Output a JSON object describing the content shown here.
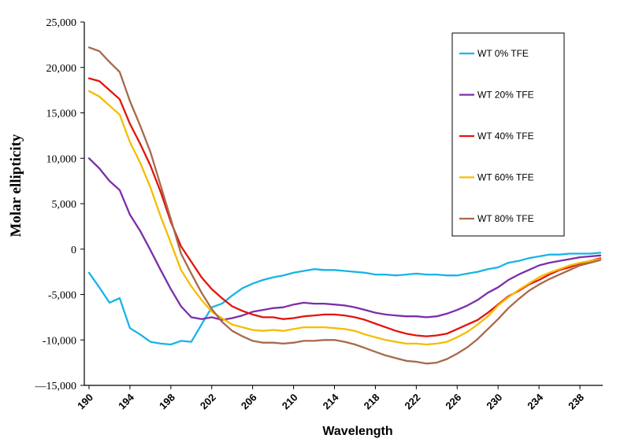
{
  "chart_data": {
    "type": "line",
    "title": "",
    "xlabel": "Wavelength",
    "ylabel": "Molar ellipticity",
    "xlim": [
      190,
      240
    ],
    "ylim": [
      -15000,
      25000
    ],
    "x_ticks": [
      190,
      194,
      198,
      202,
      206,
      210,
      214,
      218,
      222,
      226,
      230,
      234,
      238
    ],
    "y_ticks": [
      -15000,
      -10000,
      -5000,
      0,
      5000,
      10000,
      15000,
      20000,
      25000
    ],
    "y_tick_labels": [
      "—15,000",
      "-10,000",
      "-5,000",
      "0",
      "5,000",
      "10,000",
      "15,000",
      "20,000",
      "25,000"
    ],
    "grid": false,
    "legend_position": "top-right",
    "x": [
      190,
      191,
      192,
      193,
      194,
      195,
      196,
      197,
      198,
      199,
      200,
      201,
      202,
      203,
      204,
      205,
      206,
      207,
      208,
      209,
      210,
      211,
      212,
      213,
      214,
      215,
      216,
      217,
      218,
      219,
      220,
      221,
      222,
      223,
      224,
      225,
      226,
      227,
      228,
      229,
      230,
      231,
      232,
      233,
      234,
      235,
      236,
      237,
      238,
      239,
      240
    ],
    "series": [
      {
        "name": "WT 0% TFE",
        "color": "#17b4e8",
        "values": [
          -2600,
          -4200,
          -5900,
          -5400,
          -8700,
          -9400,
          -10200,
          -10400,
          -10500,
          -10100,
          -10200,
          -8300,
          -6400,
          -6000,
          -5100,
          -4300,
          -3800,
          -3400,
          -3100,
          -2900,
          -2600,
          -2400,
          -2200,
          -2300,
          -2300,
          -2400,
          -2500,
          -2600,
          -2800,
          -2800,
          -2900,
          -2800,
          -2700,
          -2800,
          -2800,
          -2900,
          -2900,
          -2700,
          -2500,
          -2200,
          -2000,
          -1500,
          -1300,
          -1000,
          -800,
          -600,
          -600,
          -500,
          -500,
          -500,
          -400
        ]
      },
      {
        "name": "WT 20% TFE",
        "color": "#7b2fa8",
        "values": [
          10000,
          8900,
          7500,
          6500,
          3800,
          2000,
          -100,
          -2300,
          -4400,
          -6300,
          -7500,
          -7700,
          -7500,
          -7800,
          -7600,
          -7300,
          -6900,
          -6700,
          -6500,
          -6400,
          -6100,
          -5900,
          -6000,
          -6000,
          -6100,
          -6200,
          -6400,
          -6700,
          -7000,
          -7200,
          -7300,
          -7400,
          -7400,
          -7500,
          -7400,
          -7100,
          -6700,
          -6200,
          -5600,
          -4800,
          -4200,
          -3400,
          -2800,
          -2300,
          -1800,
          -1500,
          -1300,
          -1100,
          -900,
          -800,
          -700
        ]
      },
      {
        "name": "WT 40% TFE",
        "color": "#e3140d",
        "values": [
          18800,
          18500,
          17500,
          16500,
          13800,
          11600,
          9200,
          6300,
          3000,
          300,
          -1400,
          -3100,
          -4400,
          -5400,
          -6300,
          -6800,
          -7200,
          -7500,
          -7500,
          -7700,
          -7600,
          -7400,
          -7300,
          -7200,
          -7200,
          -7300,
          -7500,
          -7800,
          -8200,
          -8600,
          -9000,
          -9300,
          -9500,
          -9600,
          -9500,
          -9300,
          -8800,
          -8300,
          -7800,
          -7000,
          -6100,
          -5200,
          -4600,
          -3900,
          -3400,
          -2800,
          -2300,
          -2000,
          -1600,
          -1300,
          -1000
        ]
      },
      {
        "name": "WT 60% TFE",
        "color": "#f5bd00",
        "values": [
          17400,
          16800,
          15800,
          14800,
          11800,
          9500,
          6800,
          3600,
          700,
          -2300,
          -4100,
          -5600,
          -6900,
          -7600,
          -8300,
          -8600,
          -8900,
          -9000,
          -8900,
          -9000,
          -8800,
          -8600,
          -8600,
          -8600,
          -8700,
          -8800,
          -9000,
          -9400,
          -9700,
          -10000,
          -10200,
          -10400,
          -10400,
          -10500,
          -10400,
          -10200,
          -9700,
          -9100,
          -8300,
          -7400,
          -6200,
          -5300,
          -4500,
          -3800,
          -3100,
          -2600,
          -2200,
          -1800,
          -1500,
          -1300,
          -1100
        ]
      },
      {
        "name": "WT 80% TFE",
        "color": "#a8694a",
        "values": [
          22200,
          21800,
          20600,
          19500,
          16300,
          13600,
          10700,
          7000,
          3300,
          -500,
          -2700,
          -4800,
          -6600,
          -8000,
          -9000,
          -9600,
          -10100,
          -10300,
          -10300,
          -10400,
          -10300,
          -10100,
          -10100,
          -10000,
          -10000,
          -10200,
          -10500,
          -10900,
          -11300,
          -11700,
          -12000,
          -12300,
          -12400,
          -12600,
          -12500,
          -12100,
          -11500,
          -10800,
          -9900,
          -8800,
          -7700,
          -6500,
          -5500,
          -4600,
          -3900,
          -3300,
          -2800,
          -2300,
          -1800,
          -1500,
          -1200
        ]
      }
    ]
  }
}
